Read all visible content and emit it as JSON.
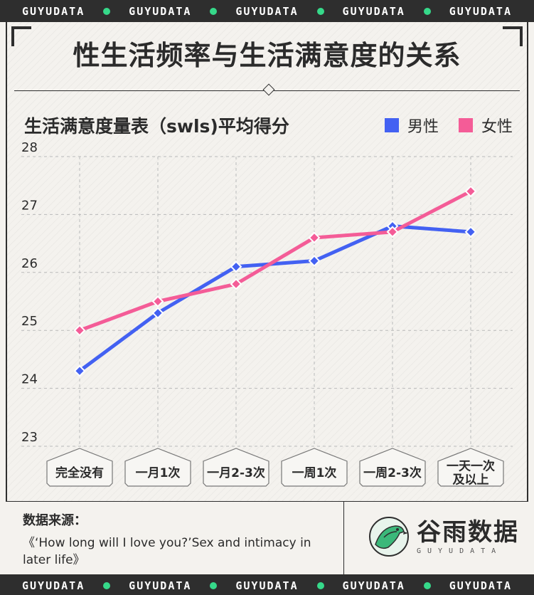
{
  "banner": {
    "text": "GUYUDATA",
    "repeat": 5
  },
  "title": "性生活频率与生活满意度的关系",
  "source": {
    "label": "数据来源：",
    "text": "《‘How long will I love you?’Sex and intimacy in later life》"
  },
  "brand": {
    "name": "谷雨数据",
    "sub": "GUYUDATA"
  },
  "colors": {
    "male": "#4361f2",
    "female": "#f45c97",
    "accent_dot": "#36d98a",
    "dark": "#2e2e2e"
  },
  "chart_data": {
    "type": "line",
    "title": "生活满意度量表（swls)平均得分",
    "categories": [
      [
        "完全没有"
      ],
      [
        "一月1次"
      ],
      [
        "一月2-3次"
      ],
      [
        "一周1次"
      ],
      [
        "一周2-3次"
      ],
      [
        "一天一次",
        "及以上"
      ]
    ],
    "series": [
      {
        "name": "男性",
        "color": "#4361f2",
        "values": [
          24.3,
          25.3,
          26.1,
          26.2,
          26.8,
          26.7
        ]
      },
      {
        "name": "女性",
        "color": "#f45c97",
        "values": [
          25.0,
          25.5,
          25.8,
          26.6,
          26.7,
          27.4
        ]
      }
    ],
    "yticks": [
      23,
      24,
      25,
      26,
      27,
      28
    ],
    "ylim": [
      23,
      28
    ],
    "grid": true,
    "legend": "top-right"
  }
}
